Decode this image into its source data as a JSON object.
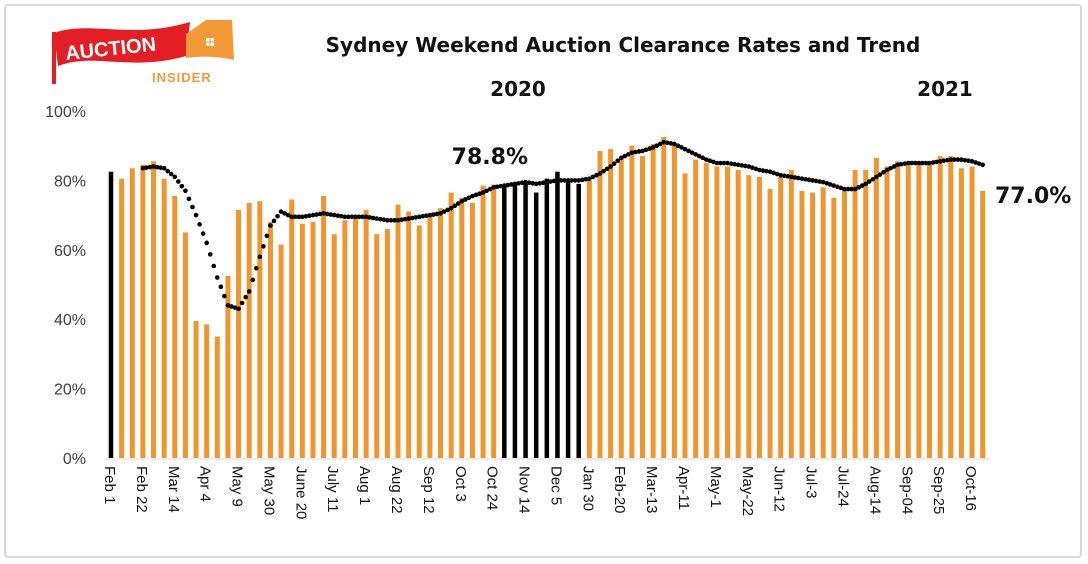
{
  "logo": {
    "word1": "AUCTION",
    "word2": "INSIDER",
    "red": "#e31e24",
    "orange": "#f39a36"
  },
  "colors": {
    "bar": "#f0962f",
    "bar_highlight": "#000000",
    "trend": "#000000",
    "axis_text": "#404040"
  },
  "chart_data": {
    "type": "bar",
    "title": "Sydney Weekend Auction Clearance Rates and Trend",
    "year_labels": [
      "2020",
      "2021"
    ],
    "xlabel": "",
    "ylabel": "",
    "ylim": [
      0,
      100
    ],
    "yticks": [
      "0%",
      "20%",
      "40%",
      "60%",
      "80%",
      "100%"
    ],
    "ytick_values": [
      0,
      20,
      40,
      60,
      80,
      100
    ],
    "grid": false,
    "legend": "none",
    "xtick_labels": [
      "Feb 1",
      "Feb 22",
      "Mar 14",
      "Apr 4",
      "May 9",
      "May 30",
      "June 20",
      "July 11",
      "Aug 1",
      "Aug 22",
      "Sep 12",
      "Oct 3",
      "Oct 24",
      "Nov 14",
      "Dec 5",
      "Jan 30",
      "Feb-20",
      "Mar-13",
      "Apr-11",
      "May-1",
      "May-22",
      "Jun-12",
      "Jul-3",
      "Jul-24",
      "Aug-14",
      "Sep-04",
      "Sep-25",
      "Oct-16"
    ],
    "xtick_every": 3,
    "annotations": [
      {
        "text": "78.8%",
        "bar_index": 36
      },
      {
        "text": "77.0%",
        "bar_index": 82
      }
    ],
    "series": [
      {
        "name": "Clearance rate",
        "type": "bar",
        "values": [
          82.5,
          80.5,
          83.5,
          84.5,
          85.5,
          80.5,
          75.5,
          65,
          39.5,
          38.5,
          35,
          52.5,
          71.5,
          73.5,
          74,
          68,
          61.5,
          74.5,
          67.5,
          68,
          75.5,
          64.5,
          68.5,
          70,
          71.5,
          64.5,
          66,
          73,
          71,
          67,
          70,
          72,
          76.5,
          75,
          73.5,
          78.5,
          78.8,
          78.5,
          79,
          79.5,
          76.5,
          80.5,
          82.5,
          80,
          79,
          80,
          88.5,
          89,
          86.5,
          90,
          87,
          90.5,
          92.5,
          90.5,
          82,
          86,
          85,
          84,
          84,
          83,
          81.5,
          81,
          77.5,
          81,
          83,
          77,
          76.5,
          78,
          75,
          78,
          83,
          83,
          86.5,
          84,
          85.5,
          85,
          85,
          84.5,
          87,
          87,
          83.5,
          84,
          77.0
        ],
        "highlight_indices": [
          0,
          37,
          38,
          39,
          40,
          41,
          42,
          43,
          44
        ]
      },
      {
        "name": "Trend",
        "type": "line",
        "style": "dotted",
        "values": [
          null,
          null,
          null,
          83.5,
          84,
          83.5,
          81,
          77,
          70,
          62,
          52,
          44,
          43,
          48,
          58,
          67,
          71,
          69.5,
          69.5,
          70,
          70.5,
          70,
          69.5,
          69.5,
          69.5,
          69,
          68.5,
          68.5,
          69,
          69.5,
          70,
          70.5,
          72,
          74,
          75.5,
          76.5,
          78,
          78.5,
          79,
          79.5,
          79,
          79.5,
          80,
          80,
          80,
          80.5,
          82,
          84,
          86.5,
          88,
          88.5,
          89.5,
          91,
          90.5,
          89,
          87.5,
          86,
          85,
          85,
          84.5,
          84,
          83,
          82.5,
          81.5,
          81,
          80.5,
          80,
          79.5,
          78.5,
          77.5,
          77.5,
          79,
          81,
          83,
          84.5,
          85,
          85,
          85,
          85.5,
          86,
          86,
          85.5,
          84.5
        ]
      }
    ]
  }
}
